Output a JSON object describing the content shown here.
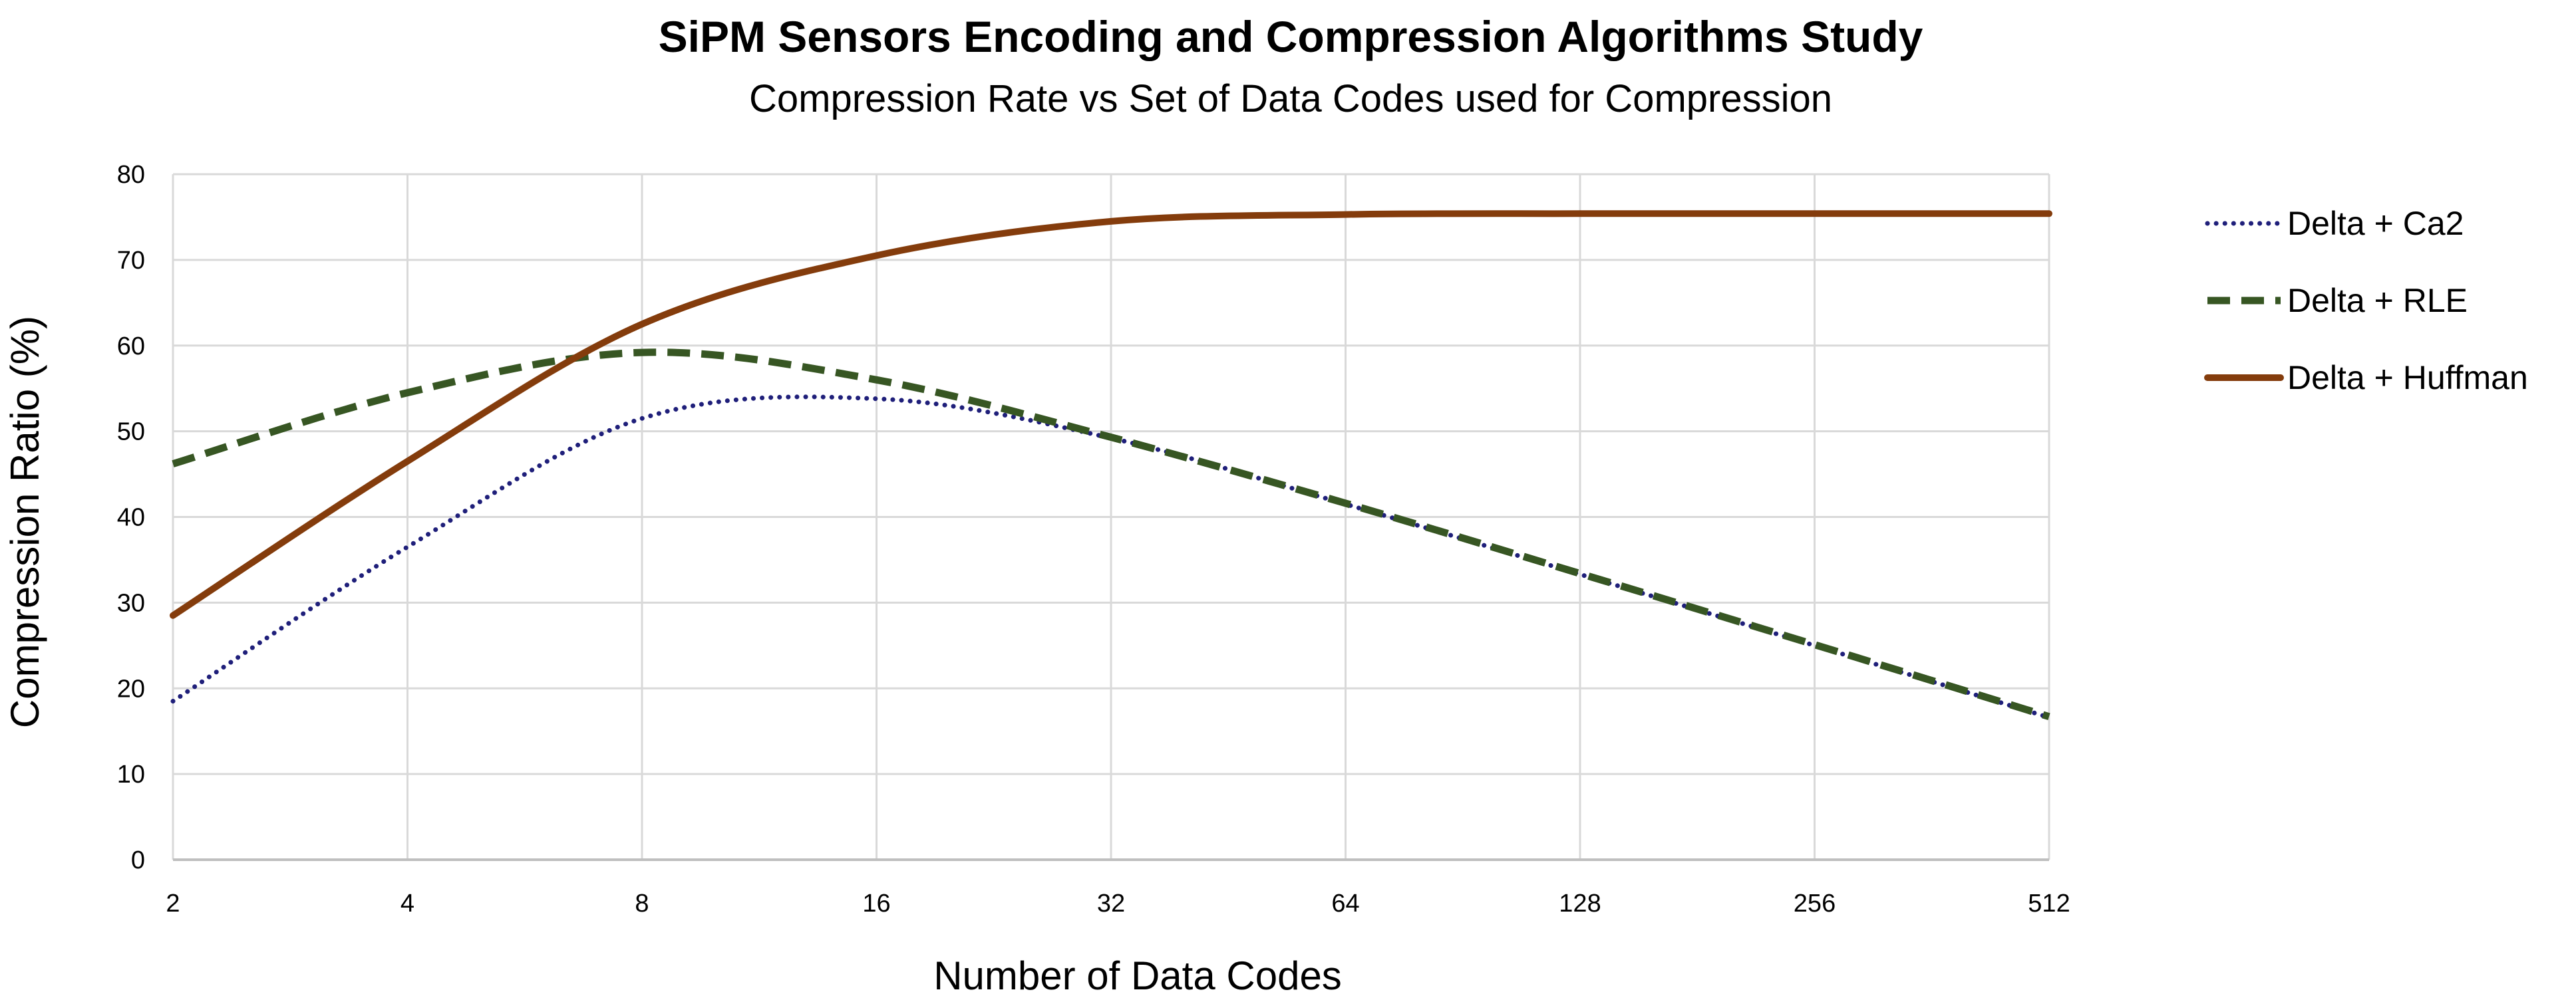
{
  "chart_data": {
    "type": "line",
    "title": "SiPM Sensors Encoding and Compression Algorithms Study",
    "subtitle": "Compression Rate vs Set of Data Codes used for Compression",
    "xlabel": "Number of Data Codes",
    "ylabel": "Compression Ratio (%)",
    "x_scale": "log2",
    "x": [
      2,
      4,
      8,
      16,
      32,
      64,
      128,
      256,
      512
    ],
    "xlim": [
      2,
      512
    ],
    "ylim": [
      0,
      80
    ],
    "yticks": [
      "0",
      "10",
      "20",
      "30",
      "40",
      "50",
      "60",
      "70",
      "80"
    ],
    "xticks": [
      "2",
      "4",
      "8",
      "16",
      "32",
      "64",
      "128",
      "256",
      "512"
    ],
    "grid": true,
    "legend_position": "right",
    "series": [
      {
        "name": "Delta + Ca2",
        "color": "#1f1f7a",
        "style": "dotted",
        "values": [
          18.5,
          36.5,
          51.5,
          53.8,
          49.2,
          41.5,
          33.3,
          25.0,
          16.6
        ]
      },
      {
        "name": "Delta + RLE",
        "color": "#375623",
        "style": "dashed",
        "values": [
          46.2,
          54.5,
          59.2,
          56.0,
          49.3,
          41.6,
          33.4,
          25.1,
          16.7
        ]
      },
      {
        "name": "Delta + Huffman",
        "color": "#843c0c",
        "style": "solid",
        "values": [
          28.5,
          46.5,
          62.5,
          70.5,
          74.5,
          75.3,
          75.4,
          75.4,
          75.4
        ]
      }
    ]
  }
}
